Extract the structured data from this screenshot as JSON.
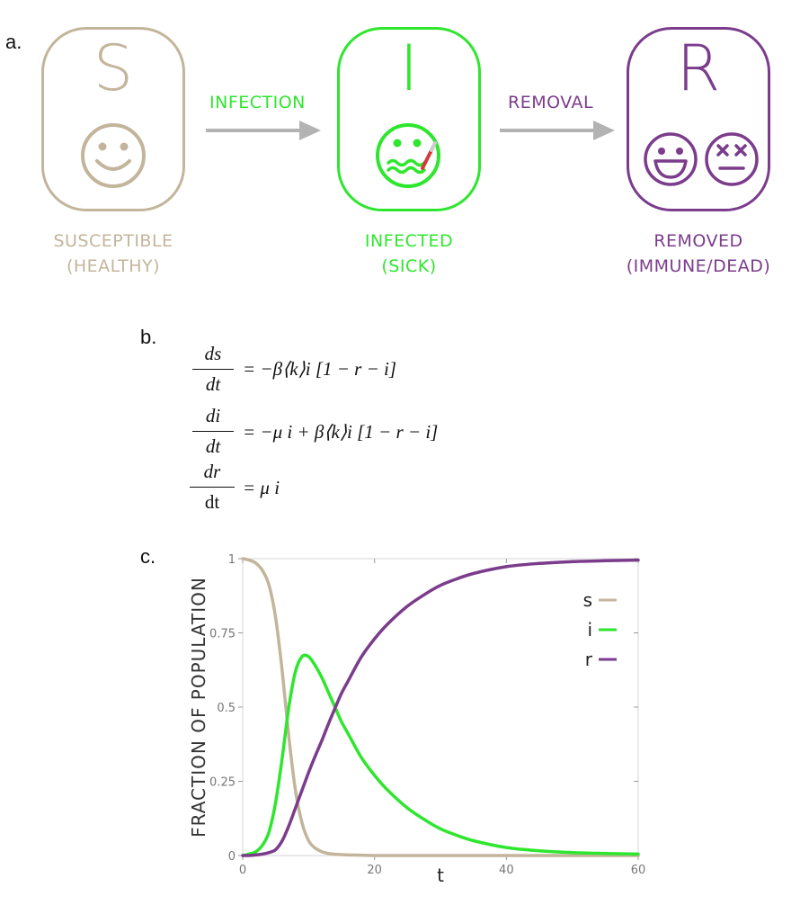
{
  "panels": {
    "a": "a.",
    "b": "b.",
    "c": "c."
  },
  "colors": {
    "susceptible": "#c3b59b",
    "infected": "#2fe62f",
    "removed": "#7b3c8c",
    "arrow": "#b3b3b3",
    "thermometer": "#d43a3a"
  },
  "states": {
    "s": {
      "letter": "S",
      "caption1": "SUSCEPTIBLE",
      "caption2": "(HEALTHY)",
      "icon": "smiley-icon"
    },
    "i": {
      "letter": "I",
      "caption1": "INFECTED",
      "caption2": "(SICK)",
      "icon": "sick-face-thermometer-icon"
    },
    "r": {
      "letter": "R",
      "caption1": "REMOVED",
      "caption2": "(IMMUNE/DEAD)",
      "icons": [
        "grinning-face-icon",
        "dead-face-icon"
      ]
    }
  },
  "transitions": {
    "infection": "INFECTION",
    "removal": "REMOVAL"
  },
  "equations": {
    "eq1": {
      "num": "ds",
      "den": "dt",
      "rhs": "= −β⟨k⟩i [1 − r − i]"
    },
    "eq2": {
      "num": "di",
      "den": "dt",
      "rhs": "= −μ i + β⟨k⟩i [1 − r − i]"
    },
    "eq3": {
      "num": "dr",
      "den": "dt",
      "rhs": "= μ i"
    }
  },
  "chart_data": {
    "type": "line",
    "xlabel": "t",
    "ylabel": "FRACTION OF POPULATION",
    "xlim": [
      0,
      60
    ],
    "ylim": [
      0,
      1
    ],
    "xticks": [
      "0",
      "20",
      "40",
      "60"
    ],
    "yticks": [
      "0",
      "0.25",
      "0.5",
      "0.75",
      "1"
    ],
    "legend_position": "top-right",
    "x": [
      0,
      1,
      2,
      3,
      4,
      5,
      6,
      7,
      8,
      9,
      10,
      11,
      12,
      13,
      14,
      15,
      16,
      18,
      20,
      22,
      25,
      28,
      30,
      32,
      35,
      40,
      45,
      50,
      55,
      60
    ],
    "series": [
      {
        "name": "s",
        "color": "#c3b59b",
        "values": [
          1.0,
          0.995,
          0.985,
          0.96,
          0.91,
          0.8,
          0.62,
          0.4,
          0.22,
          0.11,
          0.05,
          0.025,
          0.013,
          0.007,
          0.004,
          0.003,
          0.002,
          0.001,
          0.0,
          0.0,
          0.0,
          0.0,
          0.0,
          0.0,
          0.0,
          0.0,
          0.0,
          0.0,
          0.0,
          0.0
        ]
      },
      {
        "name": "i",
        "color": "#2fe62f",
        "values": [
          0.0,
          0.005,
          0.013,
          0.035,
          0.08,
          0.18,
          0.33,
          0.5,
          0.62,
          0.67,
          0.67,
          0.64,
          0.6,
          0.55,
          0.5,
          0.45,
          0.41,
          0.33,
          0.27,
          0.22,
          0.16,
          0.115,
          0.09,
          0.072,
          0.05,
          0.027,
          0.016,
          0.01,
          0.007,
          0.005
        ]
      },
      {
        "name": "r",
        "color": "#7b3c8c",
        "values": [
          0.0,
          0.0,
          0.002,
          0.005,
          0.01,
          0.02,
          0.05,
          0.1,
          0.16,
          0.22,
          0.28,
          0.335,
          0.387,
          0.443,
          0.496,
          0.547,
          0.588,
          0.669,
          0.73,
          0.78,
          0.84,
          0.885,
          0.91,
          0.928,
          0.95,
          0.973,
          0.984,
          0.99,
          0.993,
          0.995
        ]
      }
    ]
  }
}
